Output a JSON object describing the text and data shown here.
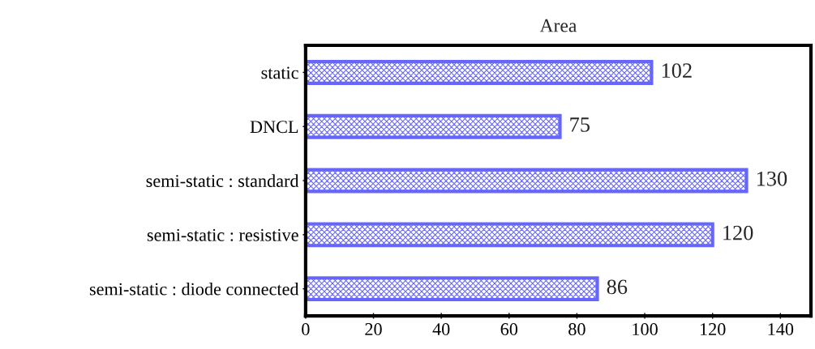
{
  "chart_data": {
    "type": "bar",
    "orientation": "horizontal",
    "title": "Area",
    "categories": [
      "static",
      "DNCL",
      "semi-static : standard",
      "semi-static : resistive",
      "semi-static : diode connected"
    ],
    "values": [
      102,
      75,
      130,
      120,
      86
    ],
    "color": "#6666ff",
    "data_labels": true,
    "xlim": [
      0,
      149
    ],
    "xticks": [
      0,
      20,
      40,
      60,
      80,
      100,
      120,
      140
    ],
    "grid": false,
    "legend": false
  }
}
